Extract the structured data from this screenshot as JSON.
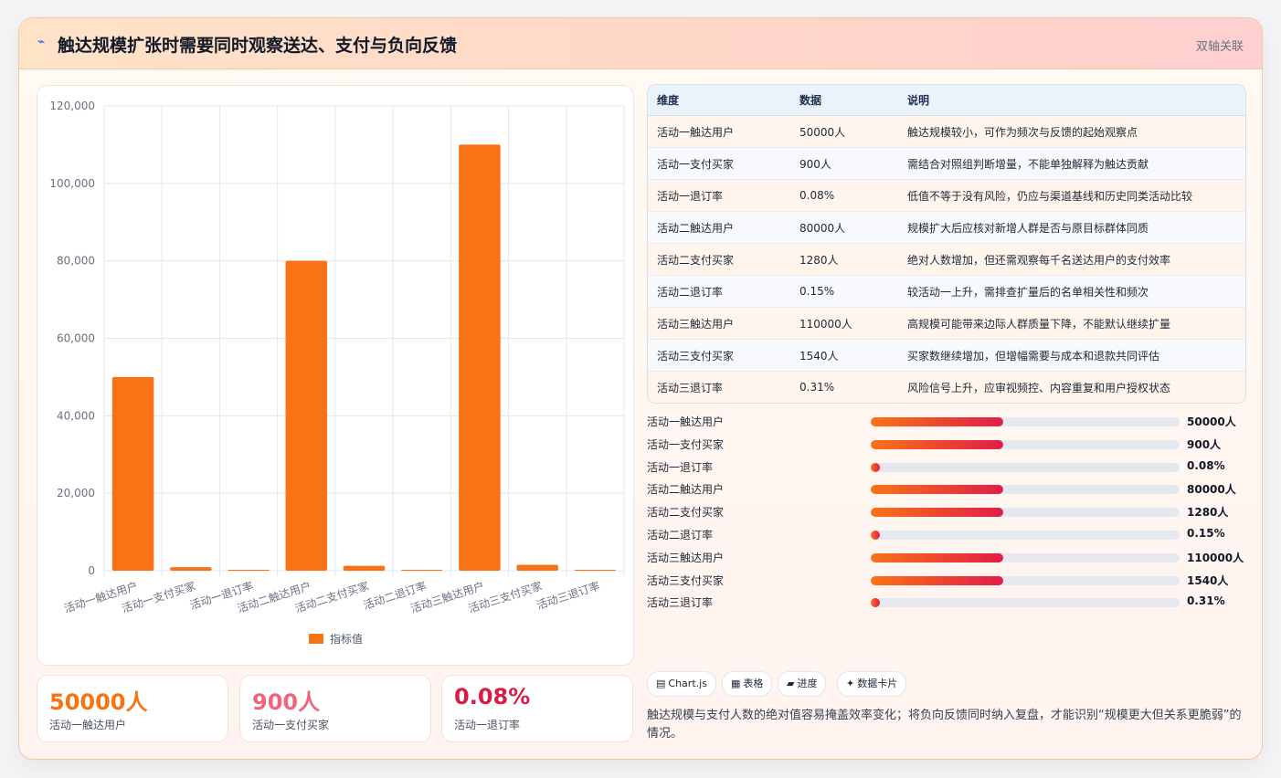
{
  "header": {
    "icon": "link-icon",
    "title": "触达规模扩张时需要同时观察送达、支付与负向反馈",
    "tag": "双轴关联"
  },
  "chart_data": {
    "type": "bar",
    "categories": [
      "活动一触达用户",
      "活动一支付买家",
      "活动一退订率",
      "活动二触达用户",
      "活动二支付买家",
      "活动二退订率",
      "活动三触达用户",
      "活动三支付买家",
      "活动三退订率"
    ],
    "series": [
      {
        "name": "指标值",
        "values": [
          50000,
          900,
          0.08,
          80000,
          1280,
          0.15,
          110000,
          1540,
          0.31
        ],
        "color": "#f97316"
      }
    ],
    "ylim": [
      0,
      120000
    ],
    "yticks": [
      0,
      20000,
      40000,
      60000,
      80000,
      100000,
      120000
    ],
    "ytick_labels": [
      "0",
      "20,000",
      "40,000",
      "60,000",
      "80,000",
      "100,000",
      "120,000"
    ],
    "grid": true,
    "legend_position": "bottom"
  },
  "kpis": [
    {
      "value": "50000人",
      "label": "活动一触达用户",
      "color": "#f97316"
    },
    {
      "value": "900人",
      "label": "活动一支付买家",
      "color": "#f0657e"
    },
    {
      "value": "0.08%",
      "label": "活动一退订率",
      "color": "#d61f45"
    }
  ],
  "table": {
    "headers": [
      "维度",
      "数据",
      "说明"
    ],
    "rows": [
      [
        "活动一触达用户",
        "50000人",
        "触达规模较小，可作为频次与反馈的起始观察点"
      ],
      [
        "活动一支付买家",
        "900人",
        "需结合对照组判断增量，不能单独解释为触达贡献"
      ],
      [
        "活动一退订率",
        "0.08%",
        "低值不等于没有风险，仍应与渠道基线和历史同类活动比较"
      ],
      [
        "活动二触达用户",
        "80000人",
        "规模扩大后应核对新增人群是否与原目标群体同质"
      ],
      [
        "活动二支付买家",
        "1280人",
        "绝对人数增加，但还需观察每千名送达用户的支付效率"
      ],
      [
        "活动二退订率",
        "0.15%",
        "较活动一上升，需排查扩量后的名单相关性和频次"
      ],
      [
        "活动三触达用户",
        "110000人",
        "高规模可能带来边际人群质量下降，不能默认继续扩量"
      ],
      [
        "活动三支付买家",
        "1540人",
        "买家数继续增加，但增幅需要与成本和退款共同评估"
      ],
      [
        "活动三退订率",
        "0.31%",
        "风险信号上升，应审视频控、内容重复和用户授权状态"
      ]
    ]
  },
  "progress": [
    {
      "label": "活动一触达用户",
      "value": "50000人",
      "fraction": 0.43
    },
    {
      "label": "活动一支付买家",
      "value": "900人",
      "fraction": 0.43
    },
    {
      "label": "活动一退订率",
      "value": "0.08%",
      "fraction": 0.03
    },
    {
      "label": "活动二触达用户",
      "value": "80000人",
      "fraction": 0.43
    },
    {
      "label": "活动二支付买家",
      "value": "1280人",
      "fraction": 0.43
    },
    {
      "label": "活动二退订率",
      "value": "0.15%",
      "fraction": 0.03
    },
    {
      "label": "活动三触达用户",
      "value": "110000人",
      "fraction": 0.43
    },
    {
      "label": "活动三支付买家",
      "value": "1540人",
      "fraction": 0.43
    },
    {
      "label": "活动三退订率",
      "value": "0.31%",
      "fraction": 0.03
    }
  ],
  "pills": [
    {
      "icon": "chart-icon",
      "glyph": "▤",
      "label": "Chart.js"
    },
    {
      "icon": "table-icon",
      "glyph": "▦",
      "label": "表格"
    },
    {
      "icon": "progress-icon",
      "glyph": "▰",
      "label": "进度"
    },
    {
      "icon": "sparkle-icon",
      "glyph": "✦",
      "label": "数据卡片"
    }
  ],
  "note": "触达规模与支付人数的绝对值容易掩盖效率变化；将负向反馈同时纳入复盘，才能识别“规模更大但关系更脆弱”的情况。"
}
